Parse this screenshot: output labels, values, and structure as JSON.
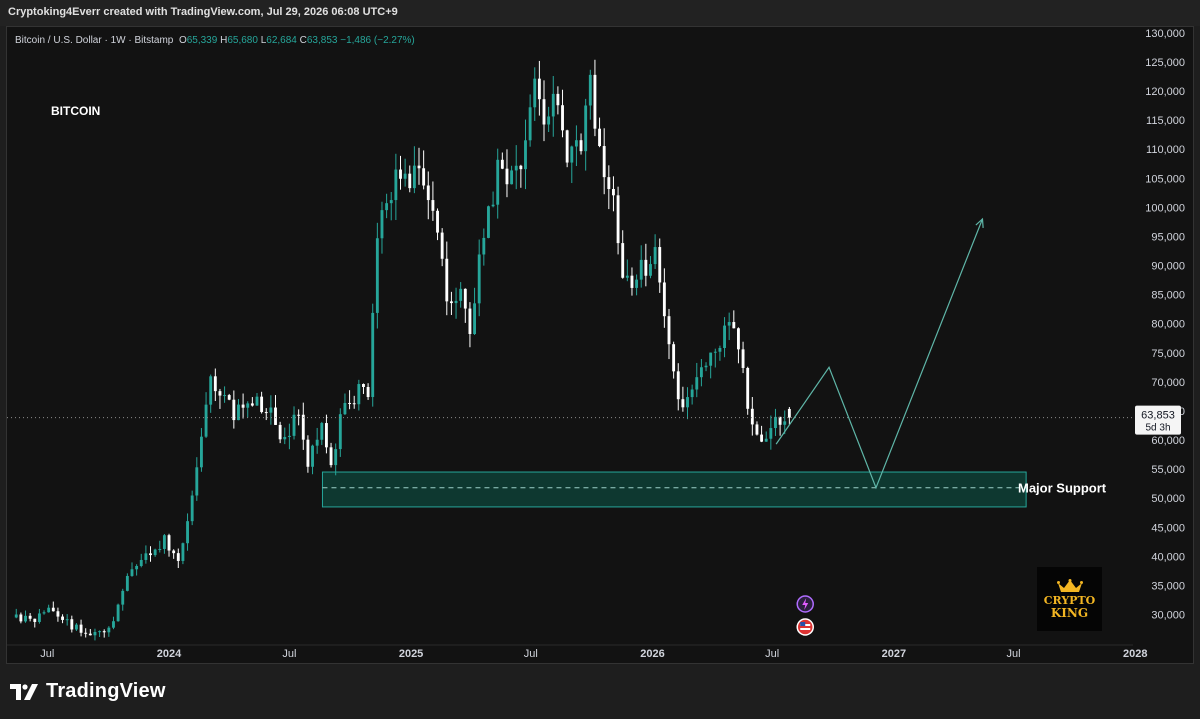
{
  "header": {
    "credit": "Cryptoking4Everr created with TradingView.com, Jul 29, 2026 06:08 UTC+9"
  },
  "legend": {
    "symbol": "Bitcoin / U.S. Dollar · 1W · Bitstamp",
    "o_label": "O",
    "o_value": "65,339",
    "h_label": "H",
    "h_value": "65,680",
    "l_label": "L",
    "l_value": "62,684",
    "c_label": "C",
    "c_value": "63,853",
    "change": "−1,486 (−2.27%)"
  },
  "chart_title": "BITCOIN",
  "price_label": {
    "value": "63,853",
    "countdown": "5d 3h"
  },
  "support_label": "Major Support",
  "badge": {
    "line1": "CRYPTO",
    "line2": "KING"
  },
  "brand": "TradingView",
  "colors": {
    "up": "#26a69a",
    "down": "#ffffff",
    "background": "#121212",
    "zone_fill": "#0f3b33",
    "zone_border": "#26a69a",
    "projection": "#5fb6a8"
  },
  "chart_data": {
    "type": "candlestick",
    "timeframe": "1W",
    "ylim": [
      27000,
      131000
    ],
    "y_ticks": [
      30000,
      35000,
      40000,
      45000,
      50000,
      55000,
      60000,
      65000,
      70000,
      75000,
      80000,
      85000,
      90000,
      95000,
      100000,
      105000,
      110000,
      115000,
      120000,
      125000,
      130000
    ],
    "y_tick_labels": [
      "30,000",
      "35,000",
      "40,000",
      "45,000",
      "50,000",
      "55,000",
      "60,000",
      "65,000",
      "70,000",
      "75,000",
      "80,000",
      "85,000",
      "90,000",
      "95,000",
      "100,000",
      "105,000",
      "110,000",
      "115,000",
      "120,000",
      "125,000",
      "130,000"
    ],
    "x_ticks": [
      {
        "date": "2023-07-01",
        "label": "Jul",
        "bold": false
      },
      {
        "date": "2024-01-01",
        "label": "2024",
        "bold": true
      },
      {
        "date": "2024-07-01",
        "label": "Jul",
        "bold": false
      },
      {
        "date": "2025-01-01",
        "label": "2025",
        "bold": true
      },
      {
        "date": "2025-07-01",
        "label": "Jul",
        "bold": false
      },
      {
        "date": "2026-01-01",
        "label": "2026",
        "bold": true
      },
      {
        "date": "2026-07-01",
        "label": "Jul",
        "bold": false
      },
      {
        "date": "2027-01-01",
        "label": "2027",
        "bold": true
      },
      {
        "date": "2027-07-01",
        "label": "Jul",
        "bold": false
      },
      {
        "date": "2028-01-01",
        "label": "2028",
        "bold": true
      }
    ],
    "anchors": [
      [
        "2023-05-15",
        29500
      ],
      [
        "2023-06-15",
        29000
      ],
      [
        "2023-07-15",
        30800
      ],
      [
        "2023-08-15",
        28000
      ],
      [
        "2023-09-15",
        26500
      ],
      [
        "2023-10-15",
        28000
      ],
      [
        "2023-11-01",
        35000
      ],
      [
        "2023-12-01",
        40000
      ],
      [
        "2024-01-01",
        43000
      ],
      [
        "2024-01-22",
        40000
      ],
      [
        "2024-02-15",
        51000
      ],
      [
        "2024-03-05",
        67000
      ],
      [
        "2024-03-14",
        71000
      ],
      [
        "2024-04-15",
        64000
      ],
      [
        "2024-05-15",
        66500
      ],
      [
        "2024-06-15",
        64000
      ],
      [
        "2024-07-05",
        58000
      ],
      [
        "2024-07-20",
        67000
      ],
      [
        "2024-08-05",
        55000
      ],
      [
        "2024-08-25",
        64000
      ],
      [
        "2024-09-07",
        54500
      ],
      [
        "2024-09-25",
        64000
      ],
      [
        "2024-10-20",
        69000
      ],
      [
        "2024-11-05",
        69000
      ],
      [
        "2024-11-20",
        97000
      ],
      [
        "2024-12-15",
        104000
      ],
      [
        "2025-01-20",
        105000
      ],
      [
        "2025-02-15",
        96000
      ],
      [
        "2025-03-05",
        84000
      ],
      [
        "2025-03-25",
        86000
      ],
      [
        "2025-04-07",
        77000
      ],
      [
        "2025-04-25",
        94000
      ],
      [
        "2025-05-22",
        108000
      ],
      [
        "2025-06-15",
        105000
      ],
      [
        "2025-07-14",
        120000
      ],
      [
        "2025-08-05",
        114000
      ],
      [
        "2025-08-14",
        122000
      ],
      [
        "2025-09-01",
        108000
      ],
      [
        "2025-09-25",
        111000
      ],
      [
        "2025-10-06",
        124000
      ],
      [
        "2025-10-20",
        108000
      ],
      [
        "2025-11-10",
        100000
      ],
      [
        "2025-11-24",
        87000
      ],
      [
        "2025-12-15",
        88000
      ],
      [
        "2026-01-15",
        92000
      ],
      [
        "2026-02-05",
        72000
      ],
      [
        "2026-02-25",
        66000
      ],
      [
        "2026-03-15",
        70000
      ],
      [
        "2026-04-15",
        76000
      ],
      [
        "2026-05-01",
        81000
      ],
      [
        "2026-05-20",
        75000
      ],
      [
        "2026-06-05",
        63000
      ],
      [
        "2026-06-20",
        59000
      ],
      [
        "2026-07-10",
        64000
      ],
      [
        "2026-07-27",
        63853
      ]
    ],
    "last_candle": {
      "date": "2026-07-27",
      "open": 65339,
      "high": 65680,
      "low": 62684,
      "close": 63853
    },
    "support_zone": {
      "from": "2024-08-20",
      "to": "2027-07-20",
      "low": 48500,
      "high": 54500,
      "mid": 51800
    },
    "projection": [
      [
        "2026-07-07",
        59300
      ],
      [
        "2026-09-25",
        72500
      ],
      [
        "2026-12-05",
        51800
      ],
      [
        "2027-05-15",
        98000
      ]
    ]
  }
}
